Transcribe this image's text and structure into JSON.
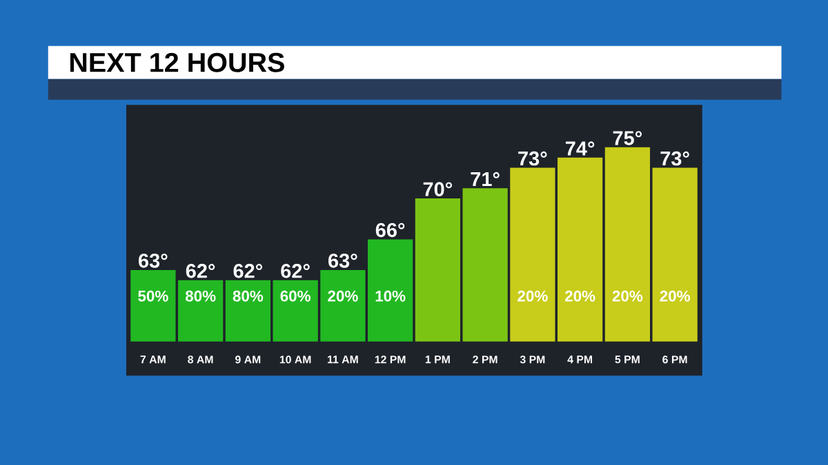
{
  "chart_data": {
    "type": "bar",
    "title": "NEXT 12 HOURS",
    "categories": [
      "7 AM",
      "8 AM",
      "9 AM",
      "10 AM",
      "11 AM",
      "12 PM",
      "1 PM",
      "2 PM",
      "3 PM",
      "4 PM",
      "5 PM",
      "6 PM"
    ],
    "values": [
      63,
      62,
      62,
      62,
      63,
      66,
      70,
      71,
      73,
      74,
      75,
      73
    ],
    "value_labels": [
      "63°",
      "62°",
      "62°",
      "62°",
      "63°",
      "66°",
      "70°",
      "71°",
      "73°",
      "74°",
      "75°",
      "73°"
    ],
    "colors": [
      "#22b822",
      "#22b822",
      "#22b822",
      "#22b822",
      "#22b822",
      "#22b822",
      "#7cc414",
      "#7cc414",
      "#c8cc1a",
      "#c8cc1a",
      "#c8cc1a",
      "#c8cc1a"
    ],
    "ylim": [
      56,
      79
    ],
    "tick_labels": "x",
    "annotations": [
      "50%",
      "80%",
      "80%",
      "60%",
      "20%",
      "10%",
      "20%",
      "20%",
      "20%",
      "20%"
    ]
  }
}
